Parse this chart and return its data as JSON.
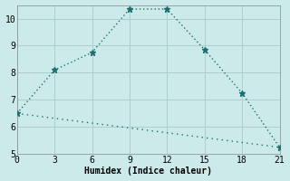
{
  "xlabel": "Humidex (Indice chaleur)",
  "ylabel": "",
  "background_color": "#cceaea",
  "grid_color": "#aacfcf",
  "line_color": "#1a7070",
  "xlim": [
    0,
    21
  ],
  "ylim": [
    5,
    10.5
  ],
  "xticks": [
    0,
    3,
    6,
    9,
    12,
    15,
    18,
    21
  ],
  "yticks": [
    5,
    6,
    7,
    8,
    9,
    10
  ],
  "line1_x": [
    0,
    3,
    6,
    9,
    12,
    15,
    18,
    21
  ],
  "line1_y": [
    6.5,
    8.1,
    8.75,
    10.35,
    10.35,
    8.85,
    7.25,
    5.25
  ],
  "line2_x": [
    0,
    21
  ],
  "line2_y": [
    6.5,
    5.25
  ],
  "font_family": "monospace"
}
